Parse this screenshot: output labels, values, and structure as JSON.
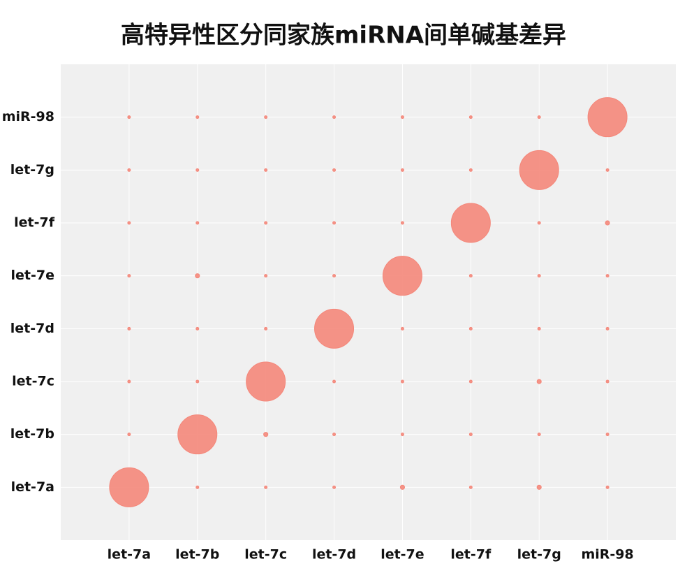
{
  "chart_data": {
    "type": "bubble-matrix",
    "title": "高特异性区分同家族miRNA间单碱基差异",
    "x_categories": [
      "let-7a",
      "let-7b",
      "let-7c",
      "let-7d",
      "let-7e",
      "let-7f",
      "let-7g",
      "miR-98"
    ],
    "y_categories": [
      "let-7a",
      "let-7b",
      "let-7c",
      "let-7d",
      "let-7e",
      "let-7f",
      "let-7g",
      "miR-98"
    ],
    "sizes": [
      [
        100,
        0.5,
        0.5,
        0.5,
        1.2,
        0.5,
        1.2,
        0.5
      ],
      [
        0.5,
        100,
        1.2,
        0.5,
        0.5,
        0.5,
        0.5,
        0.5
      ],
      [
        0.5,
        0.5,
        100,
        0.5,
        0.5,
        0.5,
        1.2,
        0.5
      ],
      [
        0.5,
        0.5,
        0.5,
        100,
        0.5,
        0.5,
        0.5,
        0.5
      ],
      [
        0.5,
        1.2,
        0.5,
        0.5,
        100,
        0.5,
        0.5,
        0.5
      ],
      [
        0.5,
        0.5,
        0.5,
        0.5,
        0.5,
        100,
        0.5,
        1.2
      ],
      [
        0.5,
        0.5,
        0.5,
        0.5,
        0.5,
        0.5,
        100,
        0.5
      ],
      [
        0.5,
        0.5,
        0.5,
        0.5,
        0.5,
        0.5,
        0.5,
        100
      ]
    ],
    "color": "#f4877a",
    "grid": true
  }
}
